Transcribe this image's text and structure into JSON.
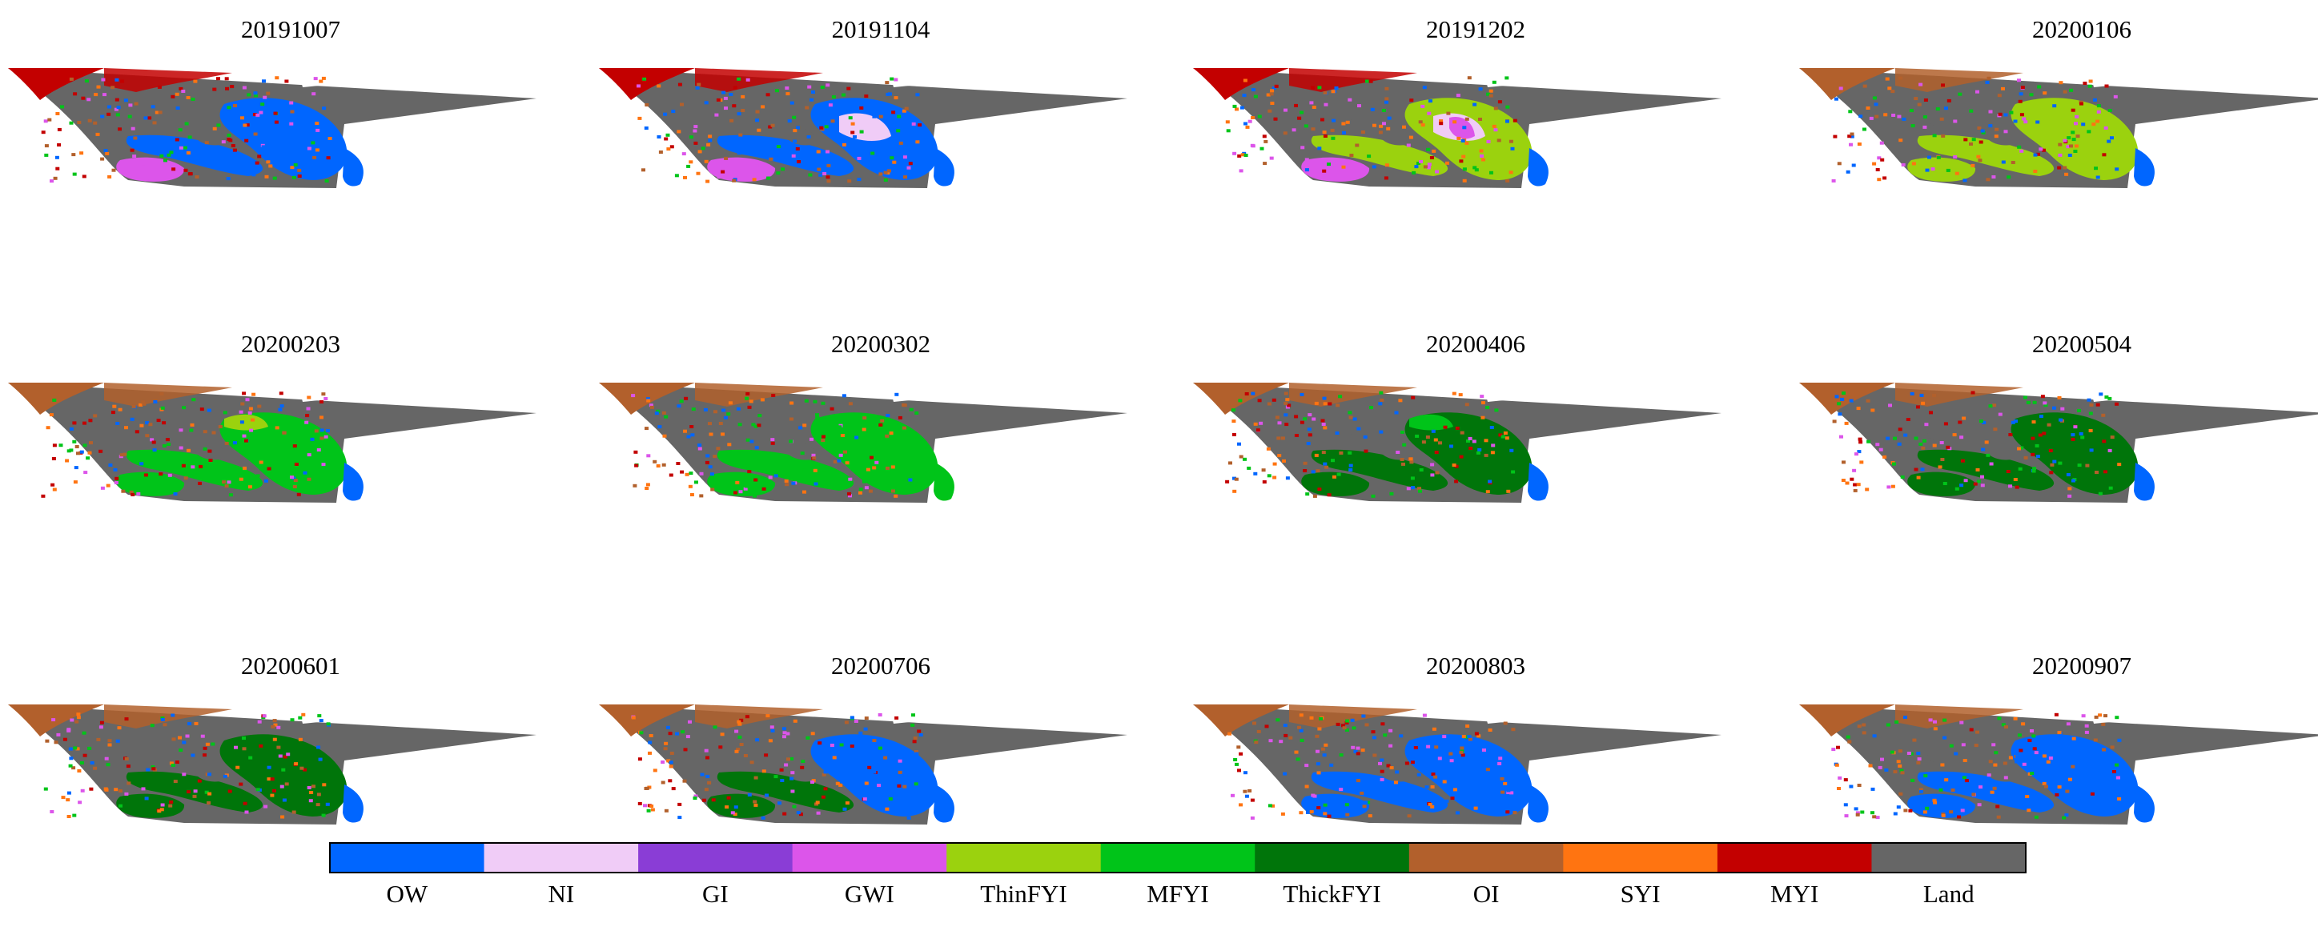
{
  "chart_data": {
    "type": "heatmap",
    "title": "",
    "panels": [
      {
        "date": "20191007",
        "dominant": [
          "OW",
          "MYI",
          "GWI",
          "Land"
        ]
      },
      {
        "date": "20191104",
        "dominant": [
          "OW",
          "NI",
          "GWI",
          "MYI",
          "Land"
        ]
      },
      {
        "date": "20191202",
        "dominant": [
          "ThinFYI",
          "NI",
          "GWI",
          "OW",
          "MYI",
          "Land"
        ]
      },
      {
        "date": "20200106",
        "dominant": [
          "ThinFYI",
          "OW",
          "OI",
          "Land"
        ]
      },
      {
        "date": "20200203",
        "dominant": [
          "MFYI",
          "ThinFYI",
          "OW",
          "OI",
          "Land"
        ]
      },
      {
        "date": "20200302",
        "dominant": [
          "MFYI",
          "OI",
          "Land"
        ]
      },
      {
        "date": "20200406",
        "dominant": [
          "ThickFYI",
          "MFYI",
          "OW",
          "OI",
          "Land"
        ]
      },
      {
        "date": "20200504",
        "dominant": [
          "ThickFYI",
          "OW",
          "OI",
          "Land"
        ]
      },
      {
        "date": "20200601",
        "dominant": [
          "ThickFYI",
          "OW",
          "OI",
          "Land"
        ]
      },
      {
        "date": "20200706",
        "dominant": [
          "OW",
          "ThickFYI",
          "OI",
          "Land"
        ]
      },
      {
        "date": "20200803",
        "dominant": [
          "OW",
          "OI",
          "Land"
        ]
      },
      {
        "date": "20200907",
        "dominant": [
          "OW",
          "OI",
          "Land"
        ]
      }
    ],
    "legend": {
      "placement": "bottom",
      "categories": [
        "OW",
        "NI",
        "GI",
        "GWI",
        "ThinFYI",
        "MFYI",
        "ThickFYI",
        "OI",
        "SYI",
        "MYI",
        "Land"
      ],
      "colors": [
        "#0066ff",
        "#f0ccf7",
        "#8a3dd6",
        "#dc55ea",
        "#9bd20e",
        "#00c419",
        "#00750a",
        "#b2602c",
        "#ff7411",
        "#c30000",
        "#666666"
      ]
    }
  }
}
